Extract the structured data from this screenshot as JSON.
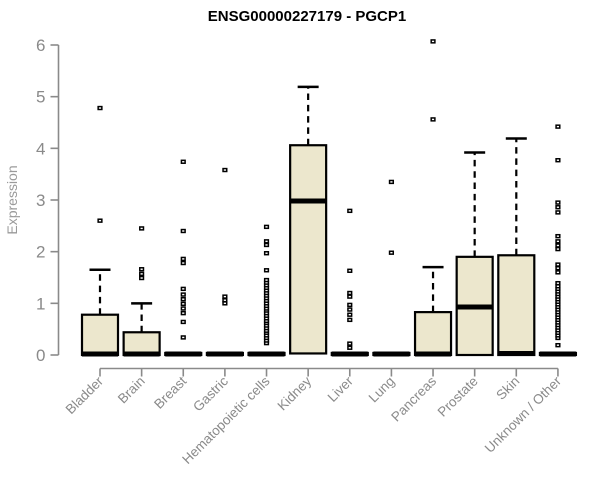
{
  "page": {
    "background": "#ffffff"
  },
  "chart_data": {
    "type": "boxplot",
    "title": "ENSG00000227179 - PGCP1",
    "xlabel": "",
    "ylabel": "Expression",
    "ylim": [
      0,
      6
    ],
    "yticks": [
      "0",
      "1",
      "2",
      "3",
      "4",
      "5",
      "6"
    ],
    "grid": false,
    "legend": "none",
    "colors": {
      "box_fill": "#ece7cd",
      "box_border": "#000000",
      "median": "#000000",
      "whisker": "#000000",
      "outlier": "#000000",
      "axis": "#8a8a8a",
      "tick_label": "#8a8a8a",
      "category_label": "#8a8a8a",
      "ylabel_color": "#9a9a9a",
      "title_color": "#000000"
    },
    "categories": [
      "Bladder",
      "Brain",
      "Breast",
      "Gastric",
      "Hematopoietic cells",
      "Kidney",
      "Liver",
      "Lung",
      "Pancreas",
      "Prostate",
      "Skin",
      "Unknown / Other"
    ],
    "boxes": [
      {
        "category": "Bladder",
        "whisker_low": 0,
        "q1": 0,
        "median": 0.02,
        "q3": 0.78,
        "whisker_high": 1.65,
        "outliers": [
          2.6,
          4.78
        ]
      },
      {
        "category": "Brain",
        "whisker_low": 0,
        "q1": 0,
        "median": 0.02,
        "q3": 0.44,
        "whisker_high": 1.0,
        "outliers": [
          1.49,
          1.57,
          1.66,
          2.45
        ]
      },
      {
        "category": "Breast",
        "whisker_low": 0,
        "q1": 0,
        "median": 0.02,
        "q3": 0.04,
        "whisker_high": 0.04,
        "outliers": [
          0.34,
          0.64,
          0.81,
          0.9,
          0.99,
          1.08,
          1.17,
          1.28,
          1.78,
          1.86,
          2.4,
          3.74
        ]
      },
      {
        "category": "Gastric",
        "whisker_low": 0,
        "q1": 0,
        "median": 0.02,
        "q3": 0.04,
        "whisker_high": 0.04,
        "outliers": [
          1.0,
          1.06,
          1.13,
          3.58
        ]
      },
      {
        "category": "Hematopoietic cells",
        "whisker_low": 0,
        "q1": 0,
        "median": 0.02,
        "q3": 0.04,
        "whisker_high": 0.04,
        "outliers": [
          0.23,
          0.28,
          0.33,
          0.38,
          0.43,
          0.47,
          0.52,
          0.57,
          0.62,
          0.66,
          0.71,
          0.76,
          0.81,
          0.86,
          0.9,
          0.95,
          1.0,
          1.05,
          1.1,
          1.15,
          1.2,
          1.25,
          1.3,
          1.35,
          1.4,
          1.45,
          1.64,
          1.97,
          2.13,
          2.2,
          2.48
        ]
      },
      {
        "category": "Kidney",
        "whisker_low": 0,
        "q1": 0.03,
        "median": 2.98,
        "q3": 4.06,
        "whisker_high": 5.19,
        "outliers": []
      },
      {
        "category": "Liver",
        "whisker_low": 0,
        "q1": 0,
        "median": 0.02,
        "q3": 0.04,
        "whisker_high": 0.04,
        "outliers": [
          0.14,
          0.22,
          0.68,
          0.78,
          0.88,
          0.97,
          1.13,
          1.2,
          1.63,
          2.79
        ]
      },
      {
        "category": "Lung",
        "whisker_low": 0,
        "q1": 0,
        "median": 0.02,
        "q3": 0.04,
        "whisker_high": 0.04,
        "outliers": [
          1.98,
          3.35
        ]
      },
      {
        "category": "Pancreas",
        "whisker_low": 0,
        "q1": 0,
        "median": 0.02,
        "q3": 0.83,
        "whisker_high": 1.7,
        "outliers": [
          4.56,
          6.07
        ]
      },
      {
        "category": "Prostate",
        "whisker_low": 0,
        "q1": 0,
        "median": 0.93,
        "q3": 1.9,
        "whisker_high": 3.92,
        "outliers": []
      },
      {
        "category": "Skin",
        "whisker_low": 0,
        "q1": 0,
        "median": 0.03,
        "q3": 1.93,
        "whisker_high": 4.19,
        "outliers": []
      },
      {
        "category": "Unknown / Other",
        "whisker_low": 0,
        "q1": 0,
        "median": 0.02,
        "q3": 0.04,
        "whisker_high": 0.04,
        "outliers": [
          0.19,
          0.33,
          0.38,
          0.43,
          0.48,
          0.53,
          0.58,
          0.63,
          0.68,
          0.73,
          0.78,
          0.83,
          0.88,
          0.93,
          0.98,
          1.03,
          1.08,
          1.13,
          1.18,
          1.23,
          1.28,
          1.33,
          1.39,
          1.6,
          1.68,
          1.75,
          2.05,
          2.12,
          2.2,
          2.3,
          2.76,
          2.86,
          2.95,
          3.77,
          4.42
        ]
      }
    ]
  }
}
